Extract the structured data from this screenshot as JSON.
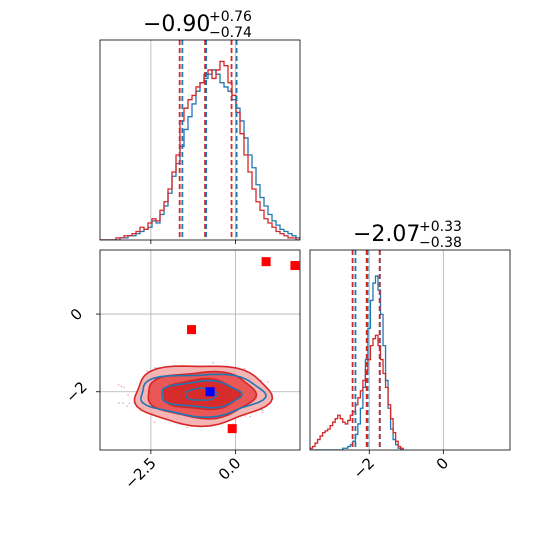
{
  "colors": {
    "blue": "#1f77b4",
    "red": "#d62728",
    "red_fill": "#f4a8a8",
    "red_fill_dark": "#e64646",
    "grid": "#b0b0b0",
    "marker_red": "#ff0000",
    "marker_blue": "#0000ff"
  },
  "chart_data": {
    "type": "corner",
    "parameters": [
      "p1",
      "p2"
    ],
    "titles": [
      {
        "main": "−0.90",
        "sup": "+0.76",
        "sub": "−0.74"
      },
      {
        "main": "−2.07",
        "sup": "+0.33",
        "sub": "−0.38"
      }
    ],
    "x_range_p1": [
      -4.0,
      1.9
    ],
    "y_range_p2": [
      -3.5,
      1.65
    ],
    "x_ticks_p1": [
      {
        "value": -2.5,
        "label": "−2.5"
      },
      {
        "value": 0.0,
        "label": "0.0"
      }
    ],
    "y_ticks_p2": [
      {
        "value": 0,
        "label": "0"
      },
      {
        "value": -2,
        "label": "−2"
      }
    ],
    "x_range_p2": [
      -3.6,
      1.8
    ],
    "x_ticks_p2": [
      {
        "value": -2,
        "label": "−2"
      },
      {
        "value": 0,
        "label": "0"
      }
    ],
    "hist_p1": {
      "x_start": -4.0,
      "bin_width": 0.118,
      "blue": [
        0,
        0,
        0,
        0,
        0,
        1,
        1,
        2,
        2,
        3,
        4,
        5,
        6,
        9,
        8,
        12,
        16,
        22,
        30,
        36,
        44,
        52,
        58,
        64,
        70,
        74,
        76,
        78,
        80,
        78,
        74,
        72,
        70,
        66,
        62,
        56,
        48,
        40,
        34,
        26,
        20,
        16,
        12,
        9,
        7,
        5,
        4,
        3,
        2,
        1,
        0
      ],
      "red": [
        0,
        0,
        0,
        0,
        1,
        1,
        2,
        2,
        3,
        4,
        6,
        5,
        8,
        10,
        9,
        14,
        18,
        24,
        32,
        40,
        56,
        62,
        66,
        68,
        72,
        74,
        78,
        80,
        76,
        80,
        84,
        82,
        74,
        68,
        60,
        50,
        40,
        32,
        24,
        18,
        14,
        10,
        8,
        6,
        4,
        3,
        2,
        1,
        1,
        0,
        0
      ],
      "blue_quantiles": [
        -1.6,
        -0.9,
        0.0
      ],
      "red_quantiles": [
        -1.65,
        -0.9,
        -0.12
      ]
    },
    "hist_p2": {
      "x_start": -3.6,
      "bin_width": 0.068,
      "blue": [
        0,
        0,
        0,
        0,
        0,
        0,
        0,
        0,
        0,
        0,
        0,
        0,
        0,
        1,
        1,
        2,
        3,
        5,
        9,
        15,
        24,
        36,
        52,
        70,
        86,
        96,
        100,
        92,
        78,
        60,
        40,
        24,
        12,
        6,
        3,
        1,
        0
      ],
      "red": [
        1,
        2,
        4,
        6,
        8,
        10,
        11,
        12,
        14,
        16,
        18,
        20,
        18,
        16,
        15,
        17,
        20,
        22,
        26,
        30,
        34,
        40,
        46,
        52,
        60,
        64,
        66,
        60,
        52,
        44,
        36,
        26,
        18,
        10,
        5,
        2,
        1
      ],
      "blue_quantiles": [
        -2.4,
        -2.07,
        -1.74
      ],
      "red_quantiles": [
        -2.45,
        -2.07,
        -1.72
      ]
    },
    "markers_red": [
      {
        "x": 0.9,
        "y": 1.35
      },
      {
        "x": 1.75,
        "y": 1.25
      },
      {
        "x": -1.3,
        "y": -0.4
      },
      {
        "x": -0.1,
        "y": -2.95
      }
    ],
    "marker_blue": {
      "x": -0.75,
      "y": -2.0
    },
    "center_2d": {
      "x": -0.9,
      "y": -2.07
    }
  }
}
